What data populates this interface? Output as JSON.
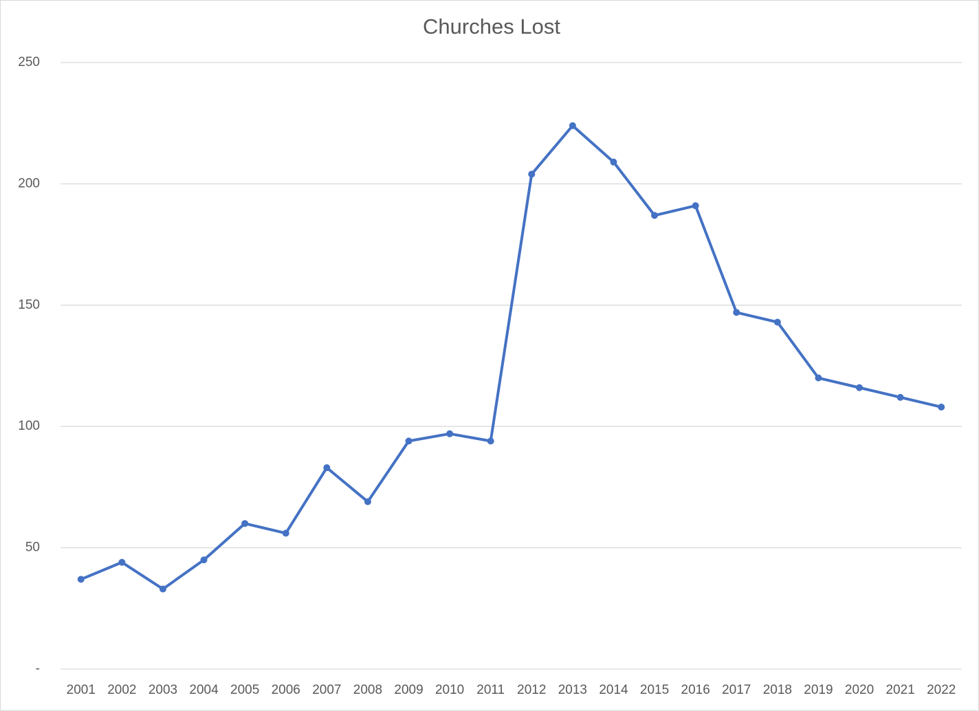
{
  "chart_data": {
    "type": "line",
    "title": "Churches Lost",
    "categories": [
      "2001",
      "2002",
      "2003",
      "2004",
      "2005",
      "2006",
      "2007",
      "2008",
      "2009",
      "2010",
      "2011",
      "2012",
      "2013",
      "2014",
      "2015",
      "2016",
      "2017",
      "2018",
      "2019",
      "2020",
      "2021",
      "2022"
    ],
    "series": [
      {
        "name": "Churches Lost",
        "color": "#4472c4",
        "values": [
          37,
          44,
          33,
          45,
          60,
          56,
          83,
          69,
          94,
          97,
          94,
          204,
          224,
          209,
          187,
          191,
          147,
          143,
          120,
          116,
          112,
          108
        ]
      }
    ],
    "ylim": [
      0,
      250
    ],
    "yticks": [
      {
        "value": 0,
        "label": "-"
      },
      50,
      100,
      150,
      200,
      250
    ],
    "grid": true
  }
}
